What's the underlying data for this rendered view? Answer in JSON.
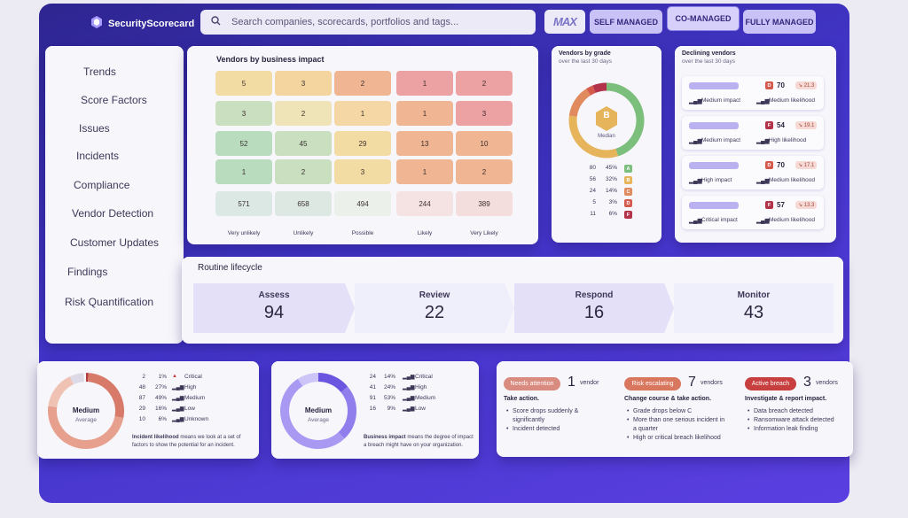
{
  "brand": {
    "name": "SecurityScorecard",
    "color": "#4235c9"
  },
  "search": {
    "placeholder": "Search companies, scorecards, portfolios and tags..."
  },
  "max": {
    "logo": "MAX",
    "options": [
      "SELF MANAGED",
      "CO-MANAGED",
      "FULLY MANAGED"
    ],
    "selected": "CO-MANAGED"
  },
  "sidebar": {
    "items": [
      "Trends",
      "Score Factors",
      "Issues",
      "Incidents",
      "Compliance",
      "Vendor Detection",
      "Customer Updates",
      "Findings",
      "Risk Quantification"
    ]
  },
  "impact": {
    "title": "Vendors by business impact",
    "rows": [
      [
        "5",
        "3",
        "2",
        "1",
        "2"
      ],
      [
        "3",
        "2",
        "1",
        "1",
        "3"
      ],
      [
        "52",
        "45",
        "29",
        "13",
        "10"
      ],
      [
        "1",
        "2",
        "3",
        "1",
        "2"
      ],
      [
        "571",
        "658",
        "494",
        "244",
        "389"
      ]
    ],
    "xlabels": [
      "Very unlikely",
      "Unlikely",
      "Possible",
      "Likely",
      "Very Likely"
    ]
  },
  "grade": {
    "title": "Vendors by grade",
    "subtitle": "over the last 30 days",
    "center": "B",
    "center_label": "Median",
    "rows": [
      {
        "count": "80",
        "pct": "45%",
        "grade": "A",
        "color": "#7cbf7d"
      },
      {
        "count": "56",
        "pct": "32%",
        "grade": "B",
        "color": "#e6b45a"
      },
      {
        "count": "24",
        "pct": "14%",
        "grade": "C",
        "color": "#e08a5d"
      },
      {
        "count": "5",
        "pct": "3%",
        "grade": "D",
        "color": "#d45a4e"
      },
      {
        "count": "11",
        "pct": "6%",
        "grade": "F",
        "color": "#b2334a"
      }
    ]
  },
  "declining": {
    "title": "Declining vendors",
    "subtitle": "over the last 30 days",
    "items": [
      {
        "grade": "D",
        "score": "70",
        "change": "↘ 21.3",
        "impact": "Medium impact",
        "likelihood": "Medium likelihood"
      },
      {
        "grade": "F",
        "score": "54",
        "change": "↘ 19.1",
        "impact": "Medium impact",
        "likelihood": "High likelihood"
      },
      {
        "grade": "D",
        "score": "70",
        "change": "↘ 17.1",
        "impact": "High impact",
        "likelihood": "Medium likelihood"
      },
      {
        "grade": "F",
        "score": "57",
        "change": "↘ 13.3",
        "impact": "Critical impact",
        "likelihood": "Medium likelihood"
      }
    ]
  },
  "lifecycle": {
    "title": "Routine lifecycle",
    "stages": [
      {
        "name": "Assess",
        "value": "94"
      },
      {
        "name": "Review",
        "value": "22"
      },
      {
        "name": "Respond",
        "value": "16"
      },
      {
        "name": "Monitor",
        "value": "43"
      }
    ]
  },
  "likelihood": {
    "center": "Medium",
    "center_sub": "Average",
    "rows": [
      {
        "count": "2",
        "pct": "1%",
        "label": "Critical"
      },
      {
        "count": "48",
        "pct": "27%",
        "label": "High"
      },
      {
        "count": "87",
        "pct": "49%",
        "label": "Medium"
      },
      {
        "count": "29",
        "pct": "16%",
        "label": "Low"
      },
      {
        "count": "10",
        "pct": "6%",
        "label": "Unknown"
      }
    ],
    "note_bold": "Incident likelihood",
    "note": " means we look at a set of factors to show the potential for an incident."
  },
  "bimpact": {
    "center": "Medium",
    "center_sub": "Average",
    "rows": [
      {
        "count": "24",
        "pct": "14%",
        "label": "Critical"
      },
      {
        "count": "41",
        "pct": "24%",
        "label": "High"
      },
      {
        "count": "91",
        "pct": "53%",
        "label": "Medium"
      },
      {
        "count": "16",
        "pct": "9%",
        "label": "Low"
      }
    ],
    "note_bold": "Business impact",
    "note": " means the degree of impact a breach might have on your organization."
  },
  "actions": [
    {
      "tag": "Needs attention",
      "count": "1",
      "unit": "vendor",
      "heading": "Take action.",
      "items": [
        "Score drops suddenly &",
        "significantly",
        "Incident detected"
      ]
    },
    {
      "tag": "Risk escalating",
      "count": "7",
      "unit": "vendors",
      "heading": "Change course & take action.",
      "items": [
        "Grade drops below C",
        "More than one serious incident in",
        "a quarter",
        "High or critical breach likelihood"
      ]
    },
    {
      "tag": "Active breach",
      "count": "3",
      "unit": "vendors",
      "heading": "Investigate & report impact.",
      "items": [
        "Data breach detected",
        "Ransomware attack detected",
        "Information leak finding"
      ]
    }
  ]
}
